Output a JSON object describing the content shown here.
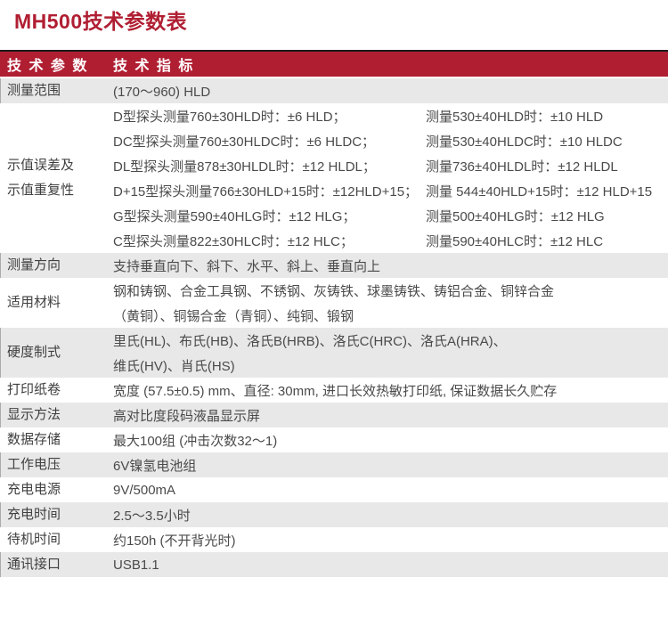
{
  "page": {
    "title": "MH500技术参数表"
  },
  "colors": {
    "brand_red": "#b01e32",
    "row_shade": "#e8e8e8",
    "frame_line": "#1c1c1c",
    "header_text": "#ffffff",
    "body_text": "#4a4a4a"
  },
  "table": {
    "header": {
      "param_col": "技 术 参 数",
      "spec_col": "技 术 指 标"
    },
    "rows": [
      {
        "label": [
          "测量范围"
        ],
        "lines": [
          {
            "left": "(170～960) HLD"
          }
        ]
      },
      {
        "label": [
          "示值误差及",
          "示值重复性"
        ],
        "lines": [
          {
            "left": "D型探头测量760±30HLD时：±6 HLD；",
            "right": "测量530±40HLD时：±10 HLD"
          },
          {
            "left": "DC型探头测量760±30HLDC时：±6 HLDC；",
            "right": "测量530±40HLDC时：±10 HLDC"
          },
          {
            "left": "DL型探头测量878±30HLDL时：±12 HLDL；",
            "right": "测量736±40HLDL时：±12 HLDL"
          },
          {
            "left": "D+15型探头测量766±30HLD+15时：±12HLD+15；",
            "right": "测量 544±40HLD+15时：±12 HLD+15"
          },
          {
            "left": "G型探头测量590±40HLG时：±12 HLG；",
            "right": "测量500±40HLG时：±12 HLG"
          },
          {
            "left": "C型探头测量822±30HLC时：±12 HLC；",
            "right": "测量590±40HLC时：±12 HLC"
          }
        ]
      },
      {
        "label": [
          "测量方向"
        ],
        "lines": [
          {
            "left": "支持垂直向下、斜下、水平、斜上、垂直向上"
          }
        ]
      },
      {
        "label": [
          "适用材料"
        ],
        "lines": [
          {
            "left": "钢和铸钢、合金工具钢、不锈钢、灰铸铁、球墨铸铁、铸铝合金、铜锌合金"
          },
          {
            "left": "（黄铜）、铜锡合金（青铜）、纯铜、锻钢"
          }
        ]
      },
      {
        "label": [
          "硬度制式"
        ],
        "lines": [
          {
            "left": "里氏(HL)、布氏(HB)、洛氏B(HRB)、洛氏C(HRC)、洛氏A(HRA)、"
          },
          {
            "left": "维氏(HV)、肖氏(HS)"
          }
        ]
      },
      {
        "label": [
          "打印纸卷"
        ],
        "lines": [
          {
            "left": "宽度 (57.5±0.5) mm、直径: 30mm, 进口长效热敏打印纸, 保证数据长久贮存"
          }
        ]
      },
      {
        "label": [
          "显示方法"
        ],
        "lines": [
          {
            "left": "高对比度段码液晶显示屏"
          }
        ]
      },
      {
        "label": [
          "数据存储"
        ],
        "lines": [
          {
            "left": "最大100组 (冲击次数32～1)"
          }
        ]
      },
      {
        "label": [
          "工作电压"
        ],
        "lines": [
          {
            "left": "6V镍氢电池组"
          }
        ]
      },
      {
        "label": [
          "充电电源"
        ],
        "lines": [
          {
            "left": "9V/500mA"
          }
        ]
      },
      {
        "label": [
          "充电时间"
        ],
        "lines": [
          {
            "left": "2.5～3.5小时"
          }
        ]
      },
      {
        "label": [
          "待机时间"
        ],
        "lines": [
          {
            "left": "约150h (不开背光时)"
          }
        ]
      },
      {
        "label": [
          "通讯接口"
        ],
        "lines": [
          {
            "left": "USB1.1"
          }
        ]
      }
    ]
  }
}
